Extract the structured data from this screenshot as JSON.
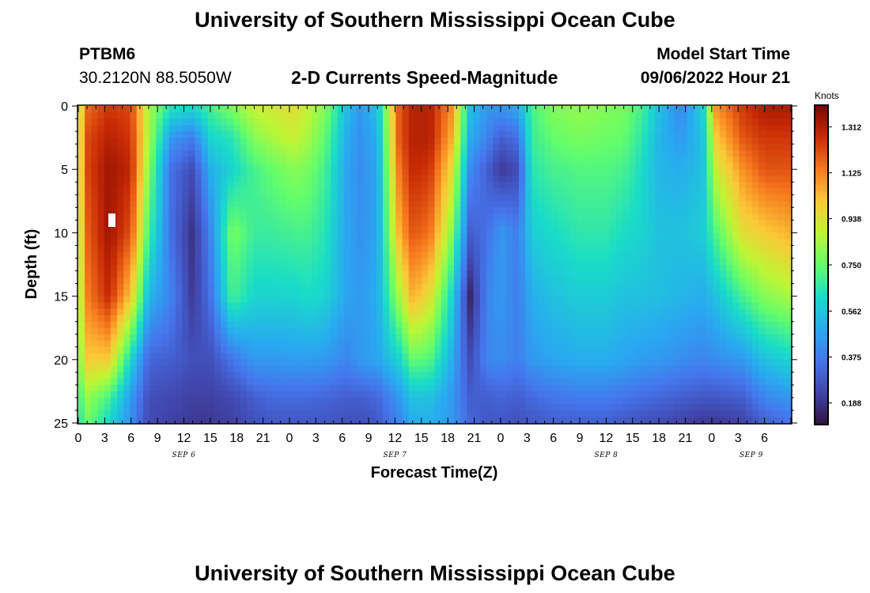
{
  "page": {
    "title": "University of Southern Mississippi Ocean Cube",
    "title_repeat": "University of Southern Mississippi Ocean Cube",
    "station_id": "PTBM6",
    "station_coords": "30.2120N  88.5050W",
    "plot_title": "2-D Currents Speed-Magnitude",
    "model_start_label": "Model Start Time",
    "model_start_value": "09/06/2022 Hour 21"
  },
  "chart_data": {
    "type": "heatmap",
    "title": "2-D Currents Speed-Magnitude",
    "xlabel": "Forecast Time(Z)",
    "ylabel": "Depth (ft)",
    "colorbar_title": "Knots",
    "colorbar_ticks": [
      "1.312",
      "1.125",
      "0.938",
      "0.750",
      "0.562",
      "0.375",
      "0.188"
    ],
    "colorbar_values": [
      1.312,
      1.125,
      0.938,
      0.75,
      0.562,
      0.375,
      0.188
    ],
    "value_range": [
      0.1,
      1.4
    ],
    "xlim": [
      0,
      81
    ],
    "ylim": [
      0,
      25
    ],
    "x_tick_labels": [
      "0",
      "3",
      "6",
      "9",
      "12",
      "15",
      "18",
      "21",
      "0",
      "3",
      "6",
      "9",
      "12",
      "15",
      "18",
      "21",
      "0",
      "3",
      "6",
      "9",
      "12",
      "15",
      "18",
      "21",
      "0",
      "3",
      "6"
    ],
    "y_tick_labels": [
      "0",
      "5",
      "10",
      "15",
      "20",
      "25"
    ],
    "y_tick_values": [
      0,
      5,
      10,
      15,
      20,
      25
    ],
    "date_labels": [
      "SEP 6",
      "SEP 7",
      "SEP 8",
      "SEP 9"
    ],
    "date_label_hours": [
      12,
      36,
      60,
      76.5
    ],
    "grid_times": [
      0,
      0.5,
      3.5,
      6,
      8,
      10.5,
      13,
      15,
      17.5,
      20,
      22,
      24.5,
      26,
      28,
      30.5,
      32,
      34,
      36.5,
      38,
      40,
      42.5,
      44.5,
      46.5,
      48,
      50,
      51.5,
      54,
      57,
      60,
      62,
      64,
      66,
      68.5,
      71,
      72.5,
      75.5,
      78,
      81
    ],
    "grid_depths": [
      0,
      2.5,
      5,
      10,
      15,
      20,
      23,
      25
    ],
    "speed_grid_knots": [
      [
        0.45,
        0.45,
        0.45,
        0.45,
        0.45,
        0.45,
        0.4,
        0.35
      ],
      [
        1.15,
        1.2,
        1.2,
        1.15,
        1.1,
        1.0,
        0.85,
        0.8
      ],
      [
        1.25,
        1.3,
        1.34,
        1.34,
        1.28,
        1.0,
        0.7,
        0.6
      ],
      [
        1.22,
        1.25,
        1.28,
        1.2,
        1.0,
        0.6,
        0.45,
        0.42
      ],
      [
        0.85,
        0.85,
        0.8,
        0.7,
        0.52,
        0.32,
        0.26,
        0.24
      ],
      [
        0.65,
        0.45,
        0.35,
        0.35,
        0.4,
        0.3,
        0.24,
        0.22
      ],
      [
        0.62,
        0.38,
        0.25,
        0.18,
        0.2,
        0.26,
        0.22,
        0.2
      ],
      [
        0.7,
        0.6,
        0.5,
        0.4,
        0.35,
        0.26,
        0.22,
        0.2
      ],
      [
        0.8,
        0.65,
        0.6,
        0.78,
        0.7,
        0.36,
        0.24,
        0.22
      ],
      [
        0.9,
        0.8,
        0.7,
        0.68,
        0.6,
        0.45,
        0.3,
        0.26
      ],
      [
        0.92,
        0.85,
        0.75,
        0.68,
        0.6,
        0.45,
        0.33,
        0.28
      ],
      [
        0.95,
        0.9,
        0.8,
        0.7,
        0.6,
        0.46,
        0.33,
        0.28
      ],
      [
        0.9,
        0.85,
        0.78,
        0.7,
        0.62,
        0.46,
        0.33,
        0.28
      ],
      [
        0.8,
        0.75,
        0.7,
        0.65,
        0.6,
        0.45,
        0.32,
        0.28
      ],
      [
        0.55,
        0.5,
        0.48,
        0.48,
        0.48,
        0.4,
        0.3,
        0.26
      ],
      [
        0.45,
        0.43,
        0.42,
        0.43,
        0.45,
        0.45,
        0.3,
        0.26
      ],
      [
        0.55,
        0.5,
        0.48,
        0.48,
        0.5,
        0.48,
        0.32,
        0.28
      ],
      [
        1.2,
        1.2,
        1.15,
        1.05,
        0.85,
        0.6,
        0.45,
        0.4
      ],
      [
        1.3,
        1.3,
        1.28,
        1.2,
        1.05,
        0.75,
        0.55,
        0.5
      ],
      [
        1.3,
        1.3,
        1.25,
        1.15,
        0.95,
        0.72,
        0.55,
        0.5
      ],
      [
        1.1,
        1.05,
        0.95,
        0.8,
        0.6,
        0.5,
        0.45,
        0.45
      ],
      [
        0.55,
        0.5,
        0.42,
        0.3,
        0.15,
        0.25,
        0.3,
        0.32
      ],
      [
        0.45,
        0.4,
        0.3,
        0.35,
        0.4,
        0.4,
        0.3,
        0.28
      ],
      [
        0.45,
        0.3,
        0.2,
        0.45,
        0.45,
        0.42,
        0.32,
        0.28
      ],
      [
        0.5,
        0.35,
        0.25,
        0.38,
        0.38,
        0.38,
        0.3,
        0.26
      ],
      [
        0.7,
        0.68,
        0.65,
        0.58,
        0.5,
        0.45,
        0.33,
        0.28
      ],
      [
        0.8,
        0.75,
        0.7,
        0.62,
        0.55,
        0.48,
        0.36,
        0.3
      ],
      [
        0.82,
        0.78,
        0.72,
        0.66,
        0.58,
        0.5,
        0.38,
        0.3
      ],
      [
        0.8,
        0.76,
        0.72,
        0.66,
        0.58,
        0.5,
        0.38,
        0.3
      ],
      [
        0.78,
        0.75,
        0.7,
        0.62,
        0.55,
        0.48,
        0.36,
        0.28
      ],
      [
        0.7,
        0.66,
        0.62,
        0.6,
        0.55,
        0.46,
        0.34,
        0.26
      ],
      [
        0.55,
        0.52,
        0.52,
        0.55,
        0.54,
        0.45,
        0.32,
        0.25
      ],
      [
        0.4,
        0.45,
        0.5,
        0.55,
        0.52,
        0.42,
        0.3,
        0.22
      ],
      [
        0.6,
        0.55,
        0.55,
        0.58,
        0.5,
        0.4,
        0.28,
        0.2
      ],
      [
        1.1,
        1.0,
        0.9,
        0.72,
        0.55,
        0.42,
        0.28,
        0.2
      ],
      [
        1.25,
        1.2,
        1.1,
        0.95,
        0.7,
        0.45,
        0.3,
        0.22
      ],
      [
        1.32,
        1.25,
        1.2,
        1.0,
        0.8,
        0.55,
        0.4,
        0.3
      ],
      [
        1.32,
        1.25,
        1.2,
        1.05,
        0.85,
        0.6,
        0.45,
        0.35
      ]
    ]
  }
}
